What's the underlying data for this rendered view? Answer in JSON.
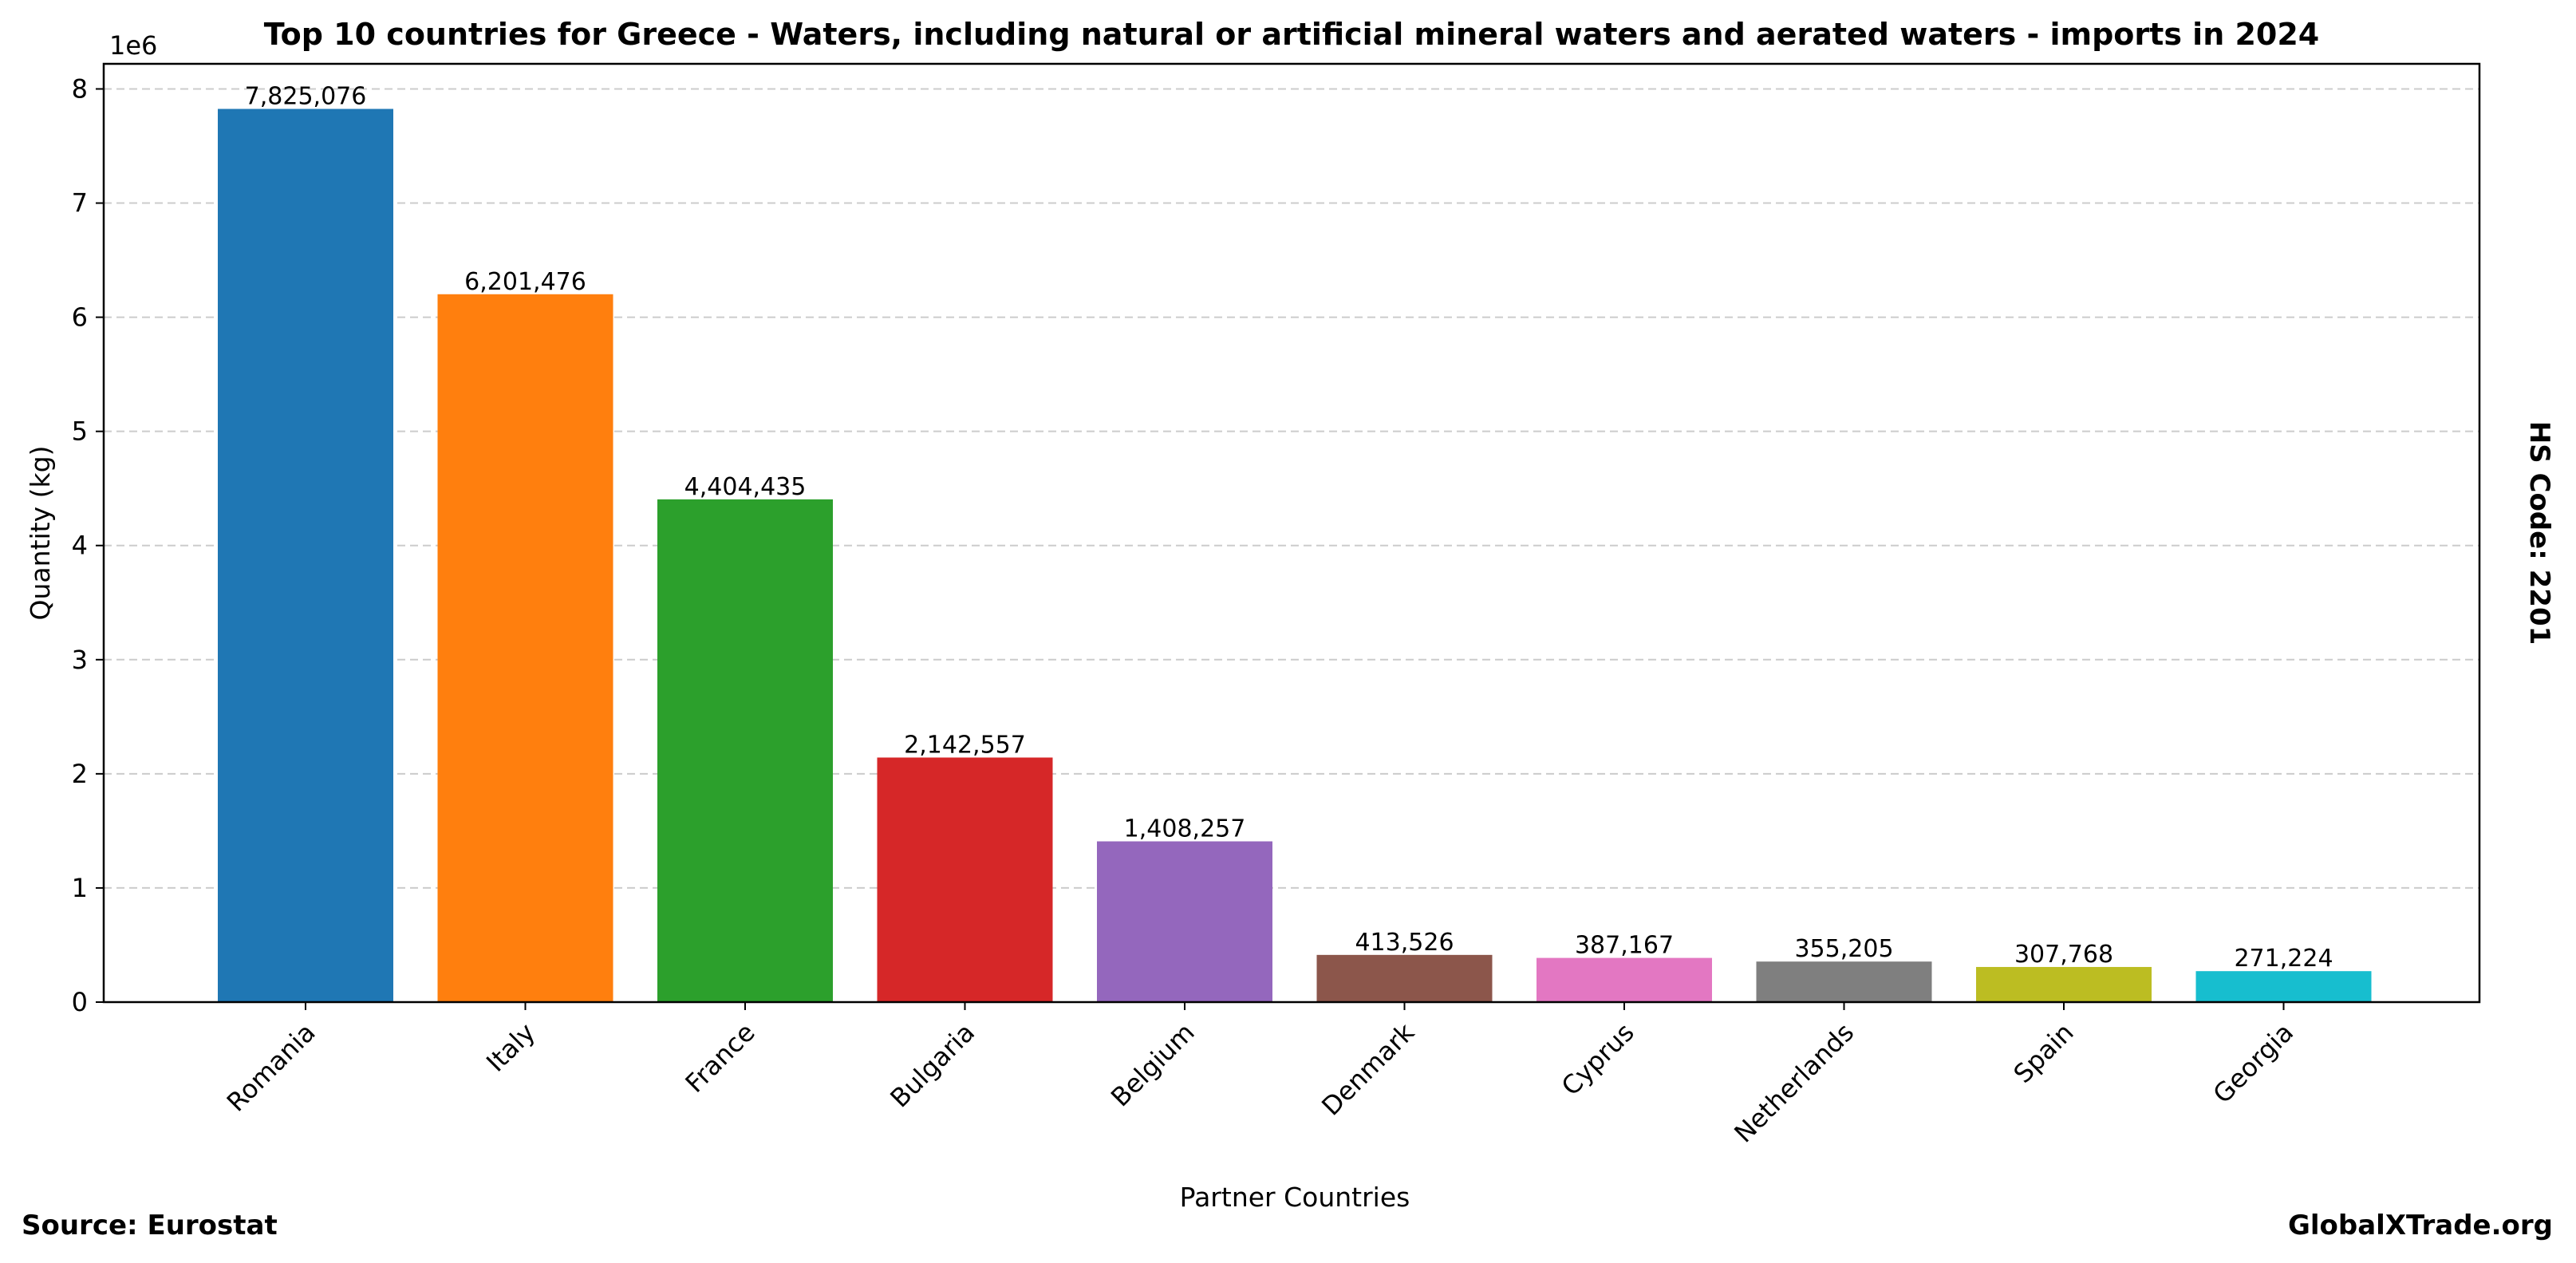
{
  "chart_data": {
    "type": "bar",
    "title": "Top 10 countries for Greece - Waters, including natural or artificial mineral waters and aerated waters - imports in 2024",
    "xlabel": "Partner Countries",
    "ylabel": "Quantity (kg)",
    "y_multiplier": "1e6",
    "ylim": [
      0,
      8.22
    ],
    "yticks": [
      "0",
      "1",
      "2",
      "3",
      "4",
      "5",
      "6",
      "7",
      "8"
    ],
    "grid": "y dashed",
    "categories": [
      "Romania",
      "Italy",
      "France",
      "Bulgaria",
      "Belgium",
      "Denmark",
      "Cyprus",
      "Netherlands",
      "Spain",
      "Georgia"
    ],
    "values": [
      7825076,
      6201476,
      4404435,
      2142557,
      1408257,
      413526,
      387167,
      355205,
      307768,
      271224
    ],
    "labels": [
      "7,825,076",
      "6,201,476",
      "4,404,435",
      "2,142,557",
      "1,408,257",
      "413,526",
      "387,167",
      "355,205",
      "307,768",
      "271,224"
    ],
    "colors": [
      "#1f77b4",
      "#ff7f0e",
      "#2ca02c",
      "#d62728",
      "#9467bd",
      "#8c564b",
      "#e377c2",
      "#7f7f7f",
      "#bcbd22",
      "#17becf"
    ]
  },
  "side_label": "HS Code: 2201",
  "source": "Source: Eurostat",
  "brand": "GlobalXTrade.org"
}
